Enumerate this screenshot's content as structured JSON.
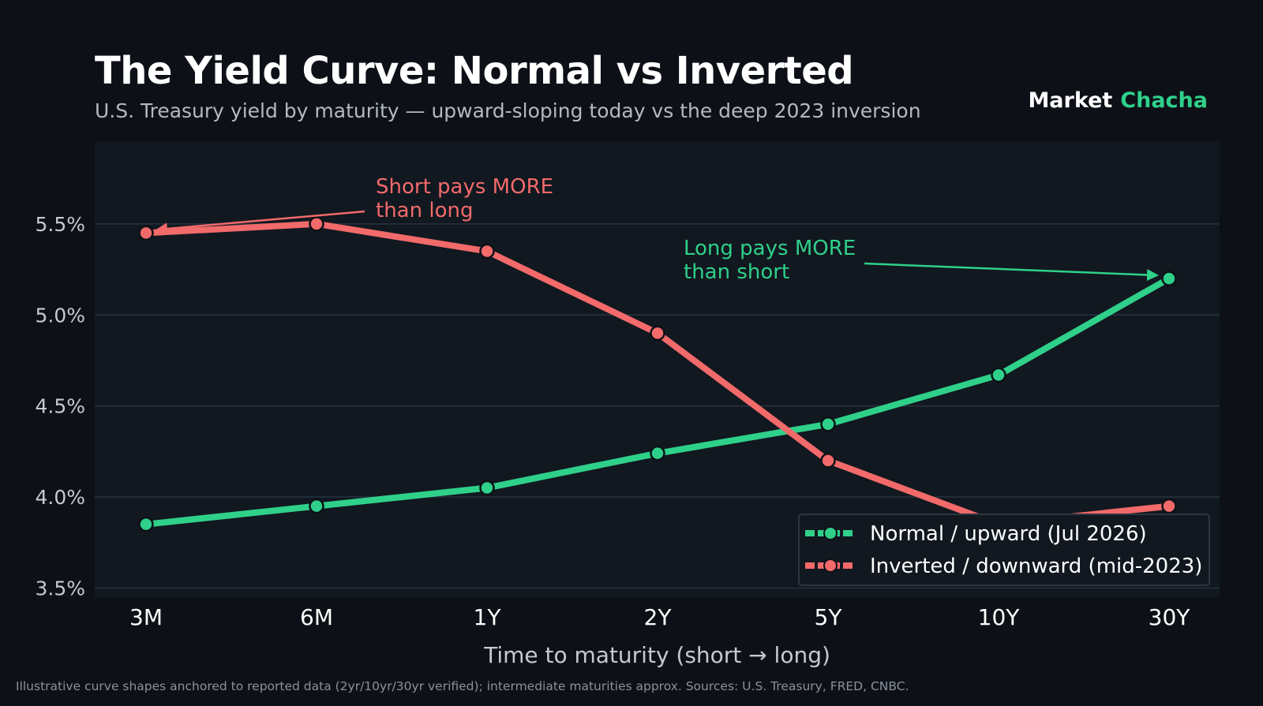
{
  "header": {
    "title": "The Yield Curve: Normal vs Inverted",
    "subtitle": "U.S. Treasury yield by maturity — upward-sloping today vs the deep 2023 inversion"
  },
  "brand": {
    "part1": "Market",
    "part2": "Chacha"
  },
  "footnote": "Illustrative curve shapes anchored to reported data (2yr/10yr/30yr verified); intermediate maturities approx. Sources: U.S. Treasury, FRED, CNBC.",
  "chart_data": {
    "type": "line",
    "x": [
      "3M",
      "6M",
      "1Y",
      "2Y",
      "5Y",
      "10Y",
      "30Y"
    ],
    "series": [
      {
        "name": "Normal / upward  (Jul 2026)",
        "color": "#2fd08a",
        "values": [
          3.85,
          3.95,
          4.05,
          4.24,
          4.4,
          4.67,
          5.2
        ]
      },
      {
        "name": "Inverted / downward  (mid-2023)",
        "color": "#f26a6a",
        "values": [
          5.45,
          5.5,
          5.35,
          4.9,
          4.2,
          3.85,
          3.95
        ]
      }
    ],
    "xlabel": "Time to maturity  (short  →  long)",
    "ylabel": "",
    "ylim": [
      3.45,
      5.95
    ],
    "yticks": [
      "3.5%",
      "4.0%",
      "4.5%",
      "5.0%",
      "5.5%"
    ],
    "ytick_values": [
      3.5,
      4.0,
      4.5,
      5.0,
      5.5
    ],
    "grid": true,
    "legend_position": "bottom-right",
    "annotations": [
      {
        "lines": [
          "Short pays MORE",
          "than long"
        ],
        "color": "#f26a6a",
        "target_series": 1,
        "target_index": 0
      },
      {
        "lines": [
          "Long pays MORE",
          "than short"
        ],
        "color": "#2fd08a",
        "target_series": 0,
        "target_index": 6
      }
    ]
  }
}
